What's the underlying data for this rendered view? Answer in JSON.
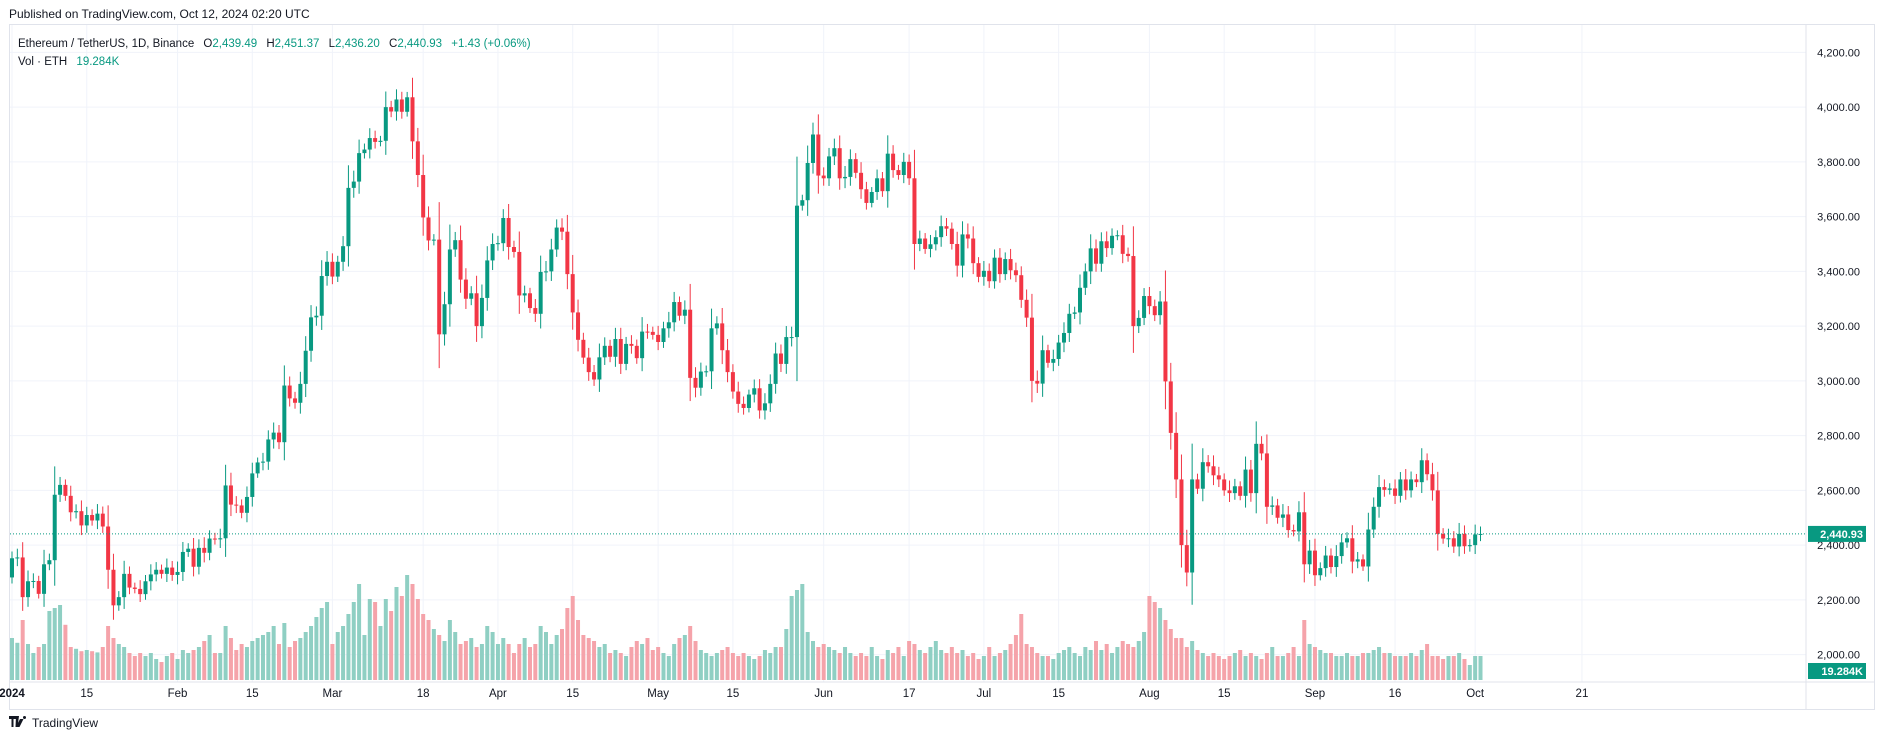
{
  "header": {
    "published": "Published on TradingView.com, Oct 12, 2024 02:20 UTC"
  },
  "legend": {
    "symbol": "Ethereum / TetherUS, 1D, Binance",
    "open_label": "O",
    "open": "2,439.49",
    "high_label": "H",
    "high": "2,451.37",
    "low_label": "L",
    "low": "2,436.20",
    "close_label": "C",
    "close": "2,440.93",
    "change": "+1.43 (+0.06%)",
    "vol_label": "Vol · ETH",
    "vol_value": "19.284K"
  },
  "footer": {
    "logo_icon": "tradingview-logo-icon",
    "brand": "TradingView"
  },
  "colors": {
    "up": "#089981",
    "down": "#f23645",
    "up_volume": "#8fcfc3",
    "down_volume": "#f5a3aa",
    "grid": "#f0f3fa",
    "price_line": "#089981"
  },
  "chart_data": {
    "type": "candlestick",
    "ylim": [
      1900,
      4300
    ],
    "y_ticks": [
      "2,000.00",
      "2,200.00",
      "2,400.00",
      "2,600.00",
      "2,800.00",
      "3,000.00",
      "3,200.00",
      "3,400.00",
      "3,600.00",
      "3,800.00",
      "4,000.00",
      "4,200.00"
    ],
    "x_ticks": [
      "2024",
      "15",
      "Feb",
      "15",
      "Mar",
      "18",
      "Apr",
      "15",
      "May",
      "15",
      "Jun",
      "17",
      "Jul",
      "15",
      "Aug",
      "15",
      "Sep",
      "16",
      "Oct",
      "21"
    ],
    "x_tick_days": [
      0,
      14,
      31,
      45,
      60,
      77,
      91,
      105,
      121,
      135,
      152,
      168,
      182,
      196,
      213,
      227,
      244,
      259,
      274,
      294
    ],
    "last_price": 2440.93,
    "last_price_label": "2,440.93",
    "last_volume_label": "19.284K",
    "start_date": "2024-01-01",
    "closes": [
      2352,
      2355,
      2210,
      2268,
      2269,
      2222,
      2330,
      2345,
      2584,
      2620,
      2580,
      2520,
      2524,
      2472,
      2510,
      2490,
      2515,
      2468,
      2310,
      2180,
      2210,
      2295,
      2245,
      2240,
      2221,
      2268,
      2293,
      2310,
      2295,
      2318,
      2291,
      2302,
      2375,
      2387,
      2321,
      2390,
      2372,
      2424,
      2421,
      2425,
      2618,
      2548,
      2545,
      2518,
      2576,
      2662,
      2702,
      2705,
      2786,
      2811,
      2776,
      2983,
      2936,
      2920,
      2989,
      3110,
      3232,
      3238,
      3383,
      3435,
      3381,
      3435,
      3492,
      3705,
      3728,
      3832,
      3845,
      3887,
      3873,
      3877,
      4000,
      3984,
      4028,
      3983,
      4036,
      3875,
      3752,
      3597,
      3513,
      3516,
      3170,
      3280,
      3480,
      3514,
      3370,
      3300,
      3320,
      3200,
      3303,
      3440,
      3500,
      3503,
      3595,
      3489,
      3471,
      3312,
      3320,
      3266,
      3245,
      3398,
      3400,
      3480,
      3560,
      3545,
      3390,
      3250,
      3150,
      3085,
      3032,
      3005,
      3086,
      3128,
      3088,
      3153,
      3062,
      3135,
      3128,
      3083,
      3180,
      3179,
      3168,
      3142,
      3192,
      3214,
      3288,
      3238,
      3260,
      3011,
      2975,
      3034,
      3035,
      3192,
      3210,
      3112,
      3032,
      2961,
      2916,
      2901,
      2950,
      2973,
      2892,
      2918,
      2989,
      3100,
      3062,
      3160,
      3160,
      3640,
      3660,
      3796,
      3900,
      3750,
      3740,
      3820,
      3850,
      3740,
      3745,
      3810,
      3760,
      3700,
      3650,
      3690,
      3740,
      3693,
      3830,
      3770,
      3752,
      3800,
      3740,
      3500,
      3520,
      3482,
      3499,
      3525,
      3565,
      3556,
      3500,
      3421,
      3535,
      3520,
      3430,
      3380,
      3402,
      3364,
      3450,
      3390,
      3445,
      3404,
      3386,
      3296,
      3231,
      3000,
      2990,
      3112,
      3066,
      3080,
      3140,
      3175,
      3245,
      3250,
      3340,
      3400,
      3484,
      3428,
      3510,
      3485,
      3530,
      3532,
      3464,
      3456,
      3200,
      3230,
      3310,
      3273,
      3240,
      3290,
      2998,
      2810,
      2640,
      2400,
      2300,
      2640,
      2606,
      2703,
      2688,
      2655,
      2640,
      2600,
      2590,
      2615,
      2580,
      2676,
      2590,
      2770,
      2735,
      2540,
      2545,
      2500,
      2512,
      2455,
      2450,
      2520,
      2330,
      2380,
      2290,
      2316,
      2362,
      2320,
      2360,
      2410,
      2425,
      2340,
      2348,
      2322,
      2457,
      2540,
      2612,
      2602,
      2607,
      2580,
      2640,
      2600,
      2640,
      2630,
      2710,
      2659,
      2600,
      2441,
      2424,
      2425,
      2395,
      2441,
      2396,
      2400,
      2439,
      2440.93
    ],
    "volumes": [
      70,
      62,
      100,
      60,
      45,
      55,
      60,
      115,
      120,
      125,
      92,
      55,
      52,
      48,
      50,
      48,
      46,
      55,
      90,
      70,
      60,
      55,
      45,
      40,
      45,
      40,
      45,
      35,
      30,
      40,
      45,
      35,
      50,
      45,
      50,
      55,
      65,
      75,
      45,
      45,
      90,
      70,
      50,
      60,
      55,
      65,
      70,
      75,
      80,
      90,
      60,
      95,
      55,
      65,
      70,
      80,
      90,
      105,
      120,
      130,
      60,
      80,
      90,
      110,
      130,
      160,
      75,
      135,
      130,
      90,
      135,
      115,
      155,
      140,
      175,
      160,
      135,
      110,
      100,
      85,
      75,
      65,
      100,
      80,
      60,
      65,
      70,
      55,
      60,
      90,
      80,
      60,
      70,
      60,
      45,
      60,
      70,
      55,
      60,
      90,
      80,
      60,
      75,
      85,
      120,
      140,
      100,
      75,
      70,
      65,
      55,
      60,
      45,
      50,
      45,
      40,
      55,
      65,
      60,
      70,
      50,
      55,
      45,
      40,
      60,
      70,
      75,
      90,
      65,
      50,
      45,
      40,
      45,
      50,
      55,
      45,
      40,
      45,
      40,
      35,
      40,
      50,
      45,
      55,
      55,
      85,
      140,
      150,
      160,
      80,
      65,
      55,
      60,
      55,
      50,
      45,
      55,
      45,
      40,
      45,
      40,
      55,
      40,
      35,
      50,
      45,
      55,
      40,
      65,
      60,
      50,
      45,
      55,
      65,
      50,
      45,
      55,
      45,
      50,
      40,
      45,
      35,
      40,
      55,
      40,
      45,
      50,
      60,
      75,
      110,
      60,
      55,
      45,
      40,
      40,
      35,
      45,
      50,
      55,
      45,
      40,
      55,
      50,
      65,
      50,
      60,
      45,
      55,
      65,
      60,
      55,
      65,
      80,
      140,
      130,
      120,
      100,
      85,
      70,
      70,
      55,
      65,
      50,
      45,
      40,
      45,
      40,
      35,
      40,
      45,
      50,
      40,
      45,
      40,
      35,
      45,
      55,
      40,
      40,
      45,
      55,
      40,
      100,
      60,
      55,
      50,
      45,
      45,
      40,
      40,
      45,
      40,
      40,
      45,
      45,
      50,
      55,
      45,
      45,
      40,
      40,
      40,
      45,
      40,
      50,
      60,
      40,
      40,
      35,
      40,
      40,
      45,
      35,
      25
    ]
  }
}
